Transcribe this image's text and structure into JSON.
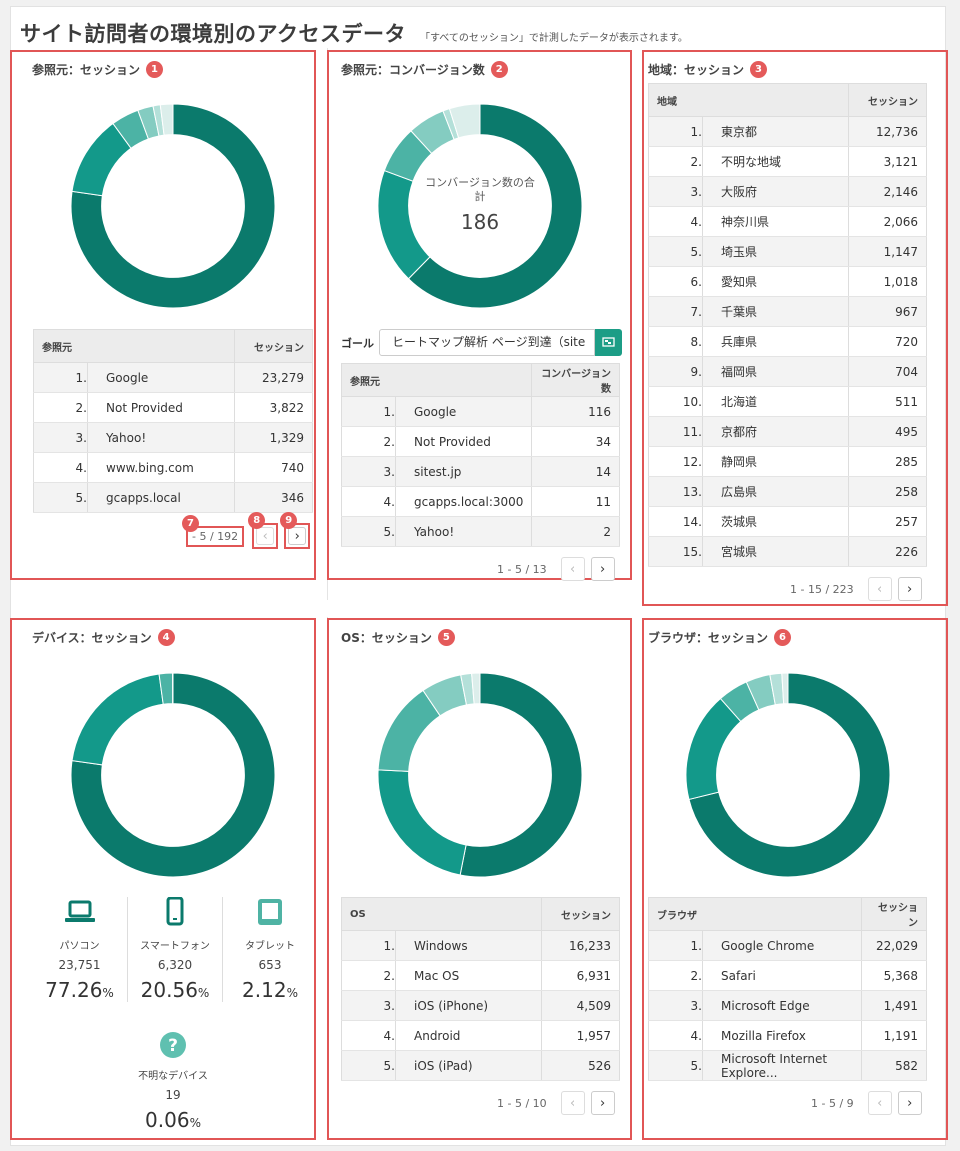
{
  "header": {
    "title": "サイト訪問者の環境別のアクセスデータ",
    "subtitle": "「すべてのセッション」で計測したデータが表示されます。"
  },
  "colors": {
    "primary": "#0b7a6c",
    "badge": "#e45a5a"
  },
  "referrer": {
    "title": "参照元：セッション",
    "badge": "1",
    "col_name": "参照元",
    "col_value": "セッション",
    "rows": [
      {
        "rank": "1.",
        "name": "Google",
        "value": "23,279"
      },
      {
        "rank": "2.",
        "name": "Not Provided",
        "value": "3,822"
      },
      {
        "rank": "3.",
        "name": "Yahoo!",
        "value": "1,329"
      },
      {
        "rank": "4.",
        "name": "www.bing.com",
        "value": "740"
      },
      {
        "rank": "5.",
        "name": "gcapps.local",
        "value": "346"
      }
    ],
    "pager": "- 5 / 192",
    "badge_pager": "7",
    "badge_prev": "8",
    "badge_next": "9"
  },
  "conversion": {
    "title": "参照元：コンバージョン数",
    "badge": "2",
    "center_label": "コンバージョン数の合計",
    "center_value": "186",
    "goal_label": "ゴール",
    "goal_value": "ヒートマップ解析 ページ到達（site",
    "col_name": "参照元",
    "col_value": "コンバージョン数",
    "rows": [
      {
        "rank": "1.",
        "name": "Google",
        "value": "116"
      },
      {
        "rank": "2.",
        "name": "Not Provided",
        "value": "34"
      },
      {
        "rank": "3.",
        "name": "sitest.jp",
        "value": "14"
      },
      {
        "rank": "4.",
        "name": "gcapps.local:3000",
        "value": "11"
      },
      {
        "rank": "5.",
        "name": "Yahoo!",
        "value": "2"
      }
    ],
    "pager": "1 - 5 / 13"
  },
  "region": {
    "title": "地域：セッション",
    "badge": "3",
    "col_name": "地域",
    "col_value": "セッション",
    "rows": [
      {
        "rank": "1.",
        "name": "東京都",
        "value": "12,736"
      },
      {
        "rank": "2.",
        "name": "不明な地域",
        "value": "3,121"
      },
      {
        "rank": "3.",
        "name": "大阪府",
        "value": "2,146"
      },
      {
        "rank": "4.",
        "name": "神奈川県",
        "value": "2,066"
      },
      {
        "rank": "5.",
        "name": "埼玉県",
        "value": "1,147"
      },
      {
        "rank": "6.",
        "name": "愛知県",
        "value": "1,018"
      },
      {
        "rank": "7.",
        "name": "千葉県",
        "value": "967"
      },
      {
        "rank": "8.",
        "name": "兵庫県",
        "value": "720"
      },
      {
        "rank": "9.",
        "name": "福岡県",
        "value": "704"
      },
      {
        "rank": "10.",
        "name": "北海道",
        "value": "511"
      },
      {
        "rank": "11.",
        "name": "京都府",
        "value": "495"
      },
      {
        "rank": "12.",
        "name": "静岡県",
        "value": "285"
      },
      {
        "rank": "13.",
        "name": "広島県",
        "value": "258"
      },
      {
        "rank": "14.",
        "name": "茨城県",
        "value": "257"
      },
      {
        "rank": "15.",
        "name": "宮城県",
        "value": "226"
      }
    ],
    "pager": "1 - 15 / 223"
  },
  "device": {
    "title": "デバイス：セッション",
    "badge": "4",
    "items": [
      {
        "icon": "laptop-icon",
        "label": "パソコン",
        "count": "23,751",
        "pct": "77.26",
        "unit": "%"
      },
      {
        "icon": "smartphone-icon",
        "label": "スマートフォン",
        "count": "6,320",
        "pct": "20.56",
        "unit": "%"
      },
      {
        "icon": "tablet-icon",
        "label": "タブレット",
        "count": "653",
        "pct": "2.12",
        "unit": "%"
      }
    ],
    "unknown": {
      "icon": "question-icon",
      "label": "不明なデバイス",
      "count": "19",
      "pct": "0.06",
      "unit": "%"
    }
  },
  "os": {
    "title": "OS：セッション",
    "badge": "5",
    "col_name": "OS",
    "col_value": "セッション",
    "rows": [
      {
        "rank": "1.",
        "name": "Windows",
        "value": "16,233"
      },
      {
        "rank": "2.",
        "name": "Mac OS",
        "value": "6,931"
      },
      {
        "rank": "3.",
        "name": "iOS (iPhone)",
        "value": "4,509"
      },
      {
        "rank": "4.",
        "name": "Android",
        "value": "1,957"
      },
      {
        "rank": "5.",
        "name": "iOS (iPad)",
        "value": "526"
      }
    ],
    "pager": "1 - 5 / 10"
  },
  "browser": {
    "title": "ブラウザ：セッション",
    "badge": "6",
    "col_name": "ブラウザ",
    "col_value": "セッション",
    "rows": [
      {
        "rank": "1.",
        "name": "Google Chrome",
        "value": "22,029"
      },
      {
        "rank": "2.",
        "name": "Safari",
        "value": "5,368"
      },
      {
        "rank": "3.",
        "name": "Microsoft Edge",
        "value": "1,491"
      },
      {
        "rank": "4.",
        "name": "Mozilla Firefox",
        "value": "1,191"
      },
      {
        "rank": "5.",
        "name": "Microsoft Internet Explore...",
        "value": "582"
      }
    ],
    "pager": "1 - 5 / 9"
  },
  "chart_data": [
    {
      "type": "pie",
      "name": "referrer",
      "labels": [
        "Google",
        "Not Provided",
        "Yahoo!",
        "www.bing.com",
        "gcapps.local",
        "other"
      ],
      "values": [
        23279,
        3822,
        1329,
        740,
        346,
        600
      ]
    },
    {
      "type": "pie",
      "name": "conversion",
      "labels": [
        "Google",
        "Not Provided",
        "sitest.jp",
        "gcapps.local:3000",
        "Yahoo!",
        "other"
      ],
      "values": [
        116,
        34,
        14,
        11,
        2,
        9
      ]
    },
    {
      "type": "pie",
      "name": "device",
      "labels": [
        "パソコン",
        "スマートフォン",
        "タブレット",
        "不明なデバイス"
      ],
      "values": [
        23751,
        6320,
        653,
        19
      ]
    },
    {
      "type": "pie",
      "name": "os",
      "labels": [
        "Windows",
        "Mac OS",
        "iOS (iPhone)",
        "Android",
        "iOS (iPad)",
        "other"
      ],
      "values": [
        16233,
        6931,
        4509,
        1957,
        526,
        400
      ]
    },
    {
      "type": "pie",
      "name": "browser",
      "labels": [
        "Google Chrome",
        "Safari",
        "Microsoft Edge",
        "Mozilla Firefox",
        "Microsoft Internet Explore...",
        "other"
      ],
      "values": [
        22029,
        5368,
        1491,
        1191,
        582,
        300
      ]
    }
  ]
}
